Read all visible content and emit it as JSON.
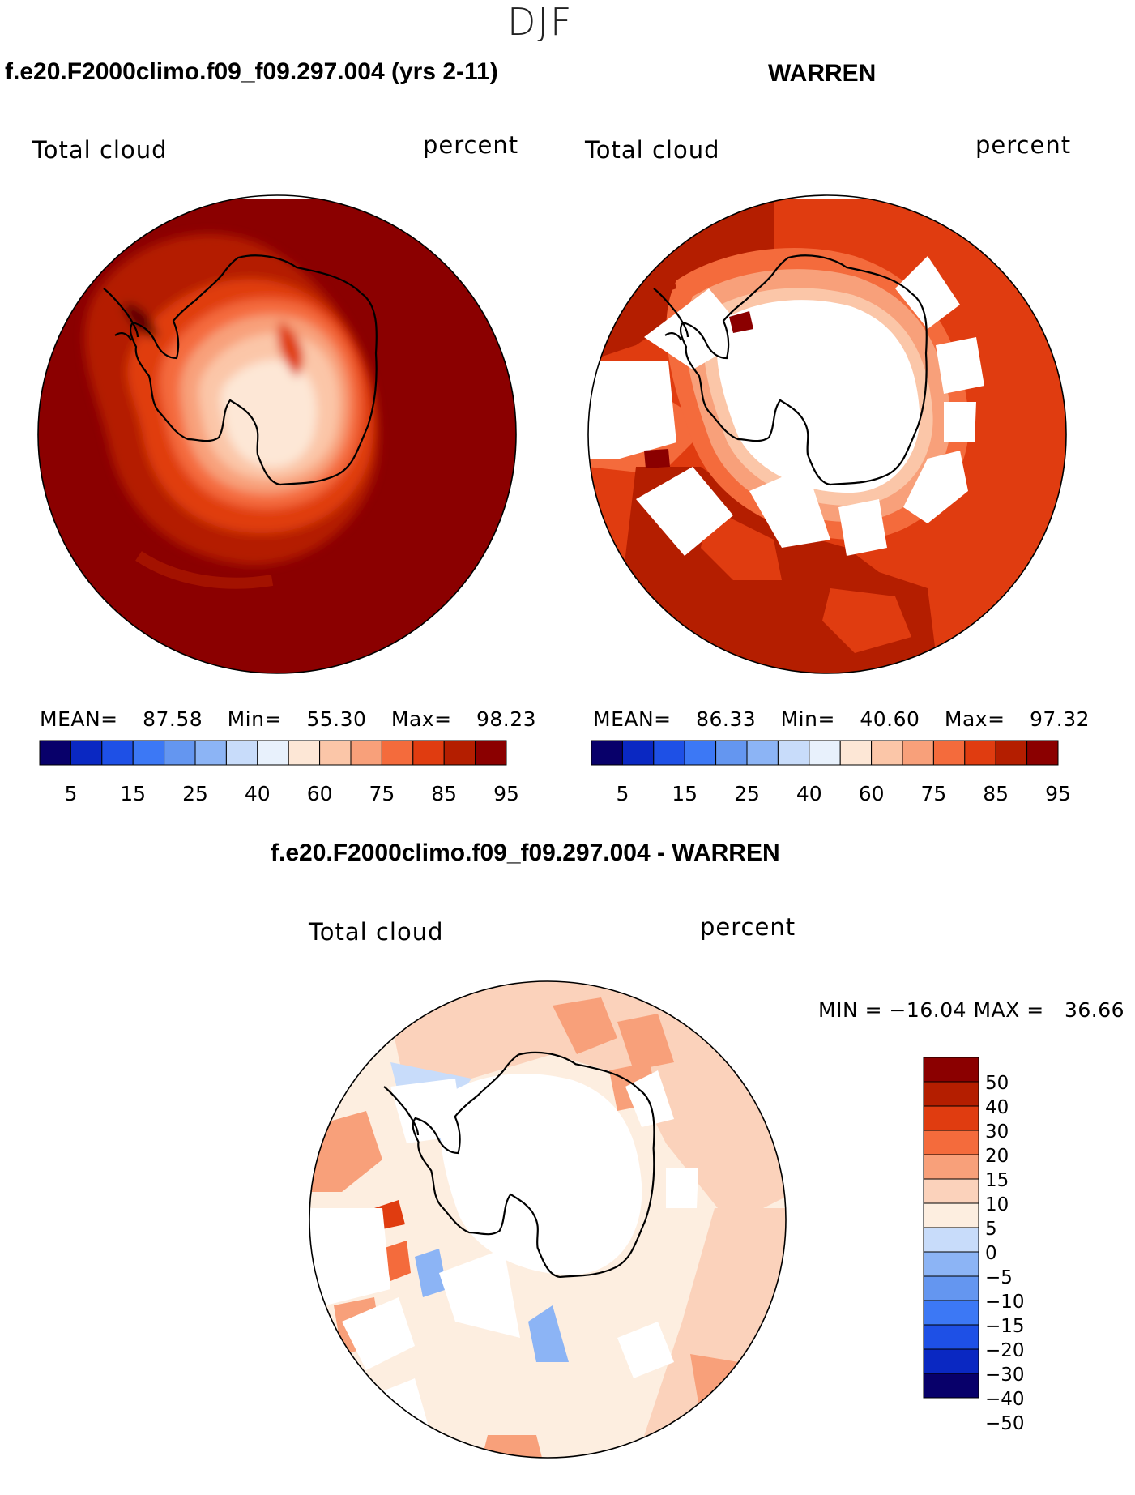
{
  "season": "DJF",
  "colors": {
    "continent_outline": "#000000",
    "missing": "#ffffff",
    "seq_palette": [
      "#08006a",
      "#0a28c2",
      "#1e50e6",
      "#3c78f5",
      "#6496f0",
      "#8cb4f5",
      "#c8dcfa",
      "#e8f1fc",
      "#fde7d6",
      "#fbc6a8",
      "#f8a07a",
      "#f46b3c",
      "#e03c10",
      "#b41e00",
      "#8b0000"
    ],
    "diff_palette": [
      "#08006a",
      "#0a28c2",
      "#1e50e6",
      "#3c78f5",
      "#6496f0",
      "#8cb4f5",
      "#c8dcfa",
      "#fdeee0",
      "#fbd2bb",
      "#f8a07a",
      "#f46b3c",
      "#e03c10",
      "#b41e00",
      "#8b0000"
    ]
  },
  "panels": {
    "left": {
      "title": "f.e20.F2000climo.f09_f09.297.004 (yrs 2-11)",
      "variable": "Total cloud",
      "units": "percent",
      "mean_label": "MEAN=",
      "mean": "87.58",
      "min_label": "Min=",
      "min": "55.30",
      "max_label": "Max=",
      "max": "98.23"
    },
    "right": {
      "title": "WARREN",
      "variable": "Total cloud",
      "units": "percent",
      "mean_label": "MEAN=",
      "mean": "86.33",
      "min_label": "Min=",
      "min": "40.60",
      "max_label": "Max=",
      "max": "97.32"
    },
    "diff": {
      "title": "f.e20.F2000climo.f09_f09.297.004 - WARREN",
      "variable": "Total cloud",
      "units": "percent",
      "minmax": "MIN = −16.04 MAX =   36.66"
    }
  },
  "chart_data": [
    {
      "type": "heatmap",
      "title": "f.e20.F2000climo.f09_f09.297.004 (yrs 2-11)",
      "projection": "south-polar stereographic",
      "field": "Total cloud",
      "units": "percent",
      "mean": 87.58,
      "min": 55.3,
      "max": 98.23,
      "colorbar_levels": [
        5,
        10,
        15,
        20,
        25,
        30,
        40,
        50,
        60,
        70,
        75,
        80,
        85,
        90,
        95
      ],
      "colorbar_tick_labels": [
        "5",
        "15",
        "25",
        "40",
        "60",
        "75",
        "85",
        "95"
      ]
    },
    {
      "type": "heatmap",
      "title": "WARREN",
      "projection": "south-polar stereographic",
      "field": "Total cloud",
      "units": "percent",
      "mean": 86.33,
      "min": 40.6,
      "max": 97.32,
      "colorbar_levels": [
        5,
        10,
        15,
        20,
        25,
        30,
        40,
        50,
        60,
        70,
        75,
        80,
        85,
        90,
        95
      ],
      "colorbar_tick_labels": [
        "5",
        "15",
        "25",
        "40",
        "60",
        "75",
        "85",
        "95"
      ]
    },
    {
      "type": "heatmap",
      "title": "f.e20.F2000climo.f09_f09.297.004 - WARREN",
      "projection": "south-polar stereographic",
      "field": "Total cloud",
      "units": "percent",
      "min": -16.04,
      "max": 36.66,
      "colorbar_levels": [
        -50,
        -40,
        -30,
        -20,
        -15,
        -10,
        -5,
        0,
        5,
        10,
        15,
        20,
        30,
        40,
        50
      ],
      "colorbar_tick_labels": [
        "50",
        "40",
        "30",
        "20",
        "15",
        "10",
        "5",
        "0",
        "−5",
        "−10",
        "−15",
        "−20",
        "−30",
        "−40",
        "−50"
      ]
    }
  ]
}
